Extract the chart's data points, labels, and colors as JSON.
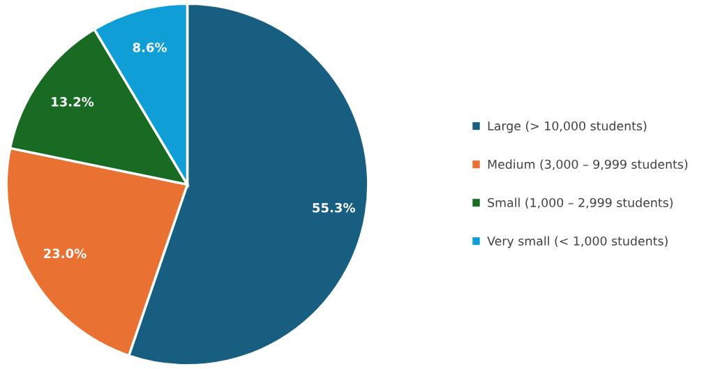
{
  "chart_data": {
    "type": "pie",
    "categories": [
      "Large (> 10,000 students)",
      "Medium (3,000 – 9,999 students)",
      "Small (1,000 – 2,999 students)",
      "Very small (< 1,000 students)"
    ],
    "values": [
      55.3,
      23.0,
      13.2,
      8.6
    ],
    "colors": [
      "#175e80",
      "#e97132",
      "#196b24",
      "#0f9ed5"
    ],
    "value_labels": [
      "55.3%",
      "23.0%",
      "13.2%",
      "8.6%"
    ],
    "legend": "right"
  }
}
